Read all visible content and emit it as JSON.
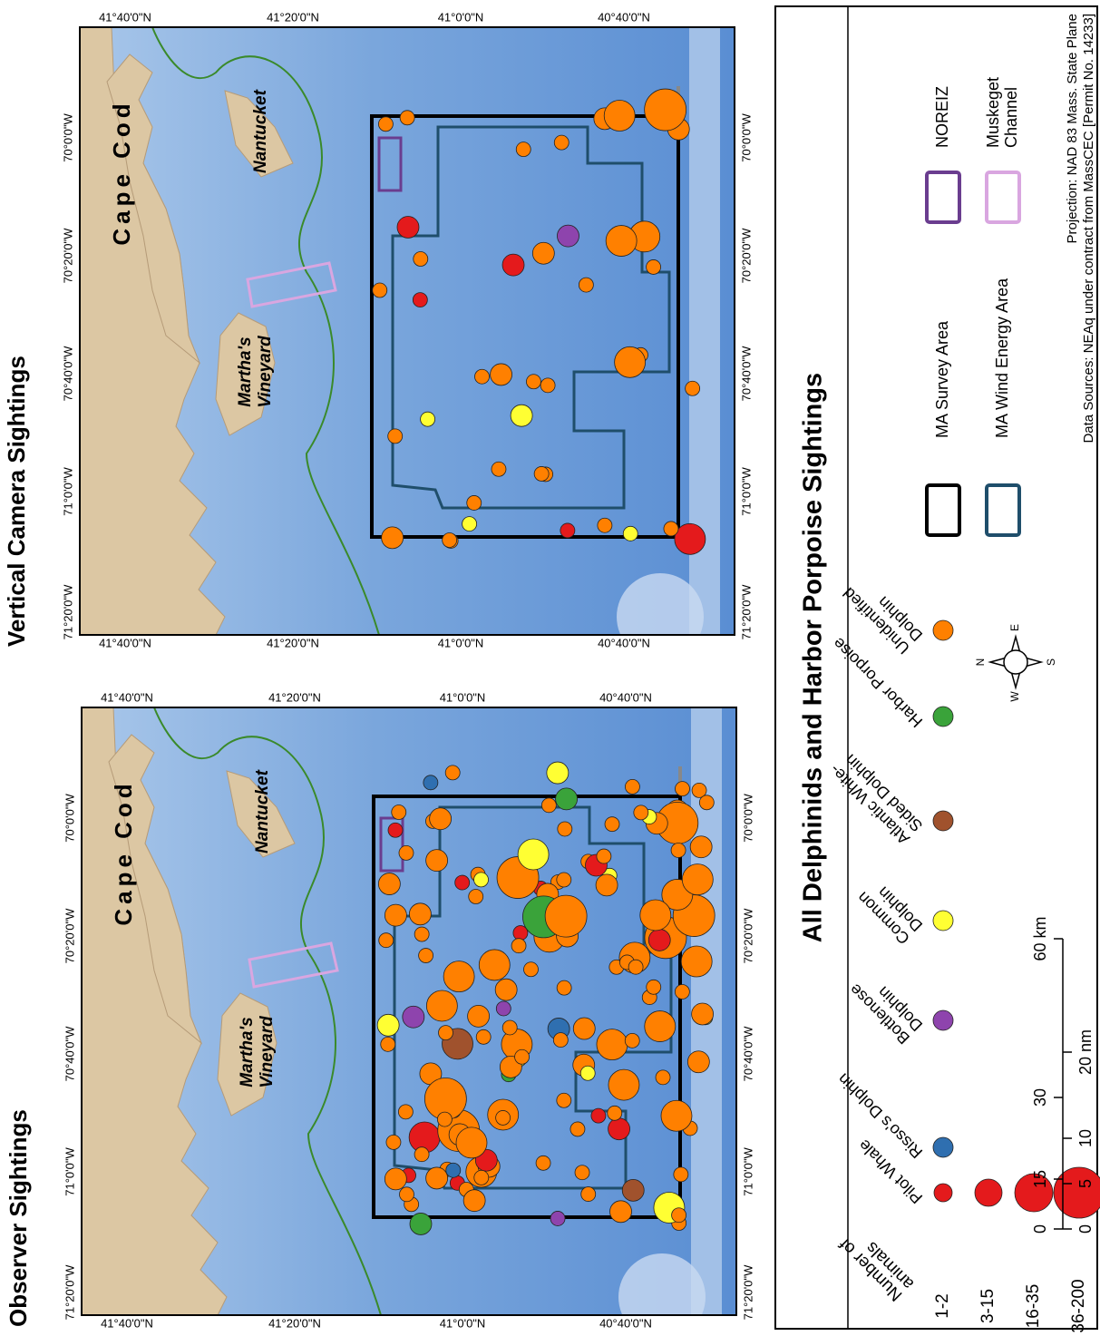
{
  "panels": [
    {
      "title": "Observer Sightings",
      "lat_labels": [
        "41°40'0\"N",
        "41°20'0\"N",
        "41°0'0\"N",
        "40°40'0\"N"
      ],
      "lon_labels": [
        "71°20'0\"W",
        "71°0'0\"W",
        "70°40'0\"W",
        "70°20'0\"W",
        "70°0'0\"W"
      ],
      "places": {
        "cape_cod": "Cape Cod",
        "marthas_vineyard": [
          "Martha's",
          "Vineyard"
        ],
        "nantucket": "Nantucket"
      }
    },
    {
      "title": "Vertical Camera Sightings",
      "lat_labels": [
        "41°40'0\"N",
        "41°20'0\"N",
        "41°0'0\"N",
        "40°40'0\"N"
      ],
      "lon_labels": [
        "71°20'0\"W",
        "71°0'0\"W",
        "70°40'0\"W",
        "70°20'0\"W",
        "70°0'0\"W"
      ],
      "places": {
        "cape_cod": "Cape Cod",
        "marthas_vineyard": [
          "Martha's",
          "Vineyard"
        ],
        "nantucket": "Nantucket"
      }
    }
  ],
  "legend": {
    "title": "All Delphinids and Harbor Porpoise Sightings",
    "count_header": [
      "Number of",
      "animals"
    ],
    "size_classes": [
      "1-2",
      "3-15",
      "16-35",
      "36-200"
    ],
    "species": [
      {
        "name": [
          "Pilot Whale"
        ],
        "color": "#e41a1c"
      },
      {
        "name": [
          "Risso's Dolphin"
        ],
        "color": "#2f6fb0"
      },
      {
        "name": [
          "Bottlenose",
          "Dolphin"
        ],
        "color": "#8e44ad"
      },
      {
        "name": [
          "Common",
          "Dolphin"
        ],
        "color": "#ffff33"
      },
      {
        "name": [
          "Atlantic White-",
          "Sided Dolphin"
        ],
        "color": "#a0522d"
      },
      {
        "name": [
          "Harbor Porpoise"
        ],
        "color": "#3aa33a"
      },
      {
        "name": [
          "Unidentified",
          "Dolphin"
        ],
        "color": "#ff8000"
      }
    ],
    "scale_km": [
      "0",
      "15",
      "30",
      "60 km"
    ],
    "scale_nm": [
      "0",
      "5",
      "10",
      "20 nm"
    ],
    "compass": {
      "n": "N",
      "e": "E",
      "s": "S",
      "w": "W"
    },
    "areas": [
      {
        "name": [
          "MA Survey Area"
        ],
        "color": "#000000"
      },
      {
        "name": [
          "MA Wind Energy Area"
        ],
        "color": "#1f4e6b"
      },
      {
        "name": [
          "NOREIZ"
        ],
        "color": "#6a3d8f"
      },
      {
        "name": [
          "Muskeget",
          "Channel"
        ],
        "color": "#d9a6e0"
      }
    ],
    "projection": "Projection: NAD 83 Mass. State Plane",
    "sources": "Data Sources: NEAq under contract from MassCEC [Permit No. 14233]"
  }
}
